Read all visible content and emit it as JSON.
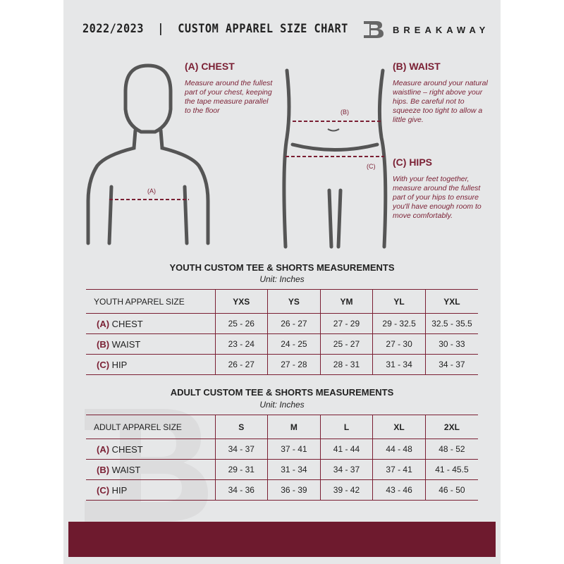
{
  "header": {
    "title": "2022/2023  |  CUSTOM APPAREL SIZE CHART",
    "brand": "BREAKAWAY"
  },
  "chest": {
    "heading": "(A) CHEST",
    "text": "Measure around the fullest part of your chest, keeping the tape measure parallel to the floor",
    "marker": "(A)"
  },
  "waist": {
    "heading": "(B) WAIST",
    "text": "Measure around your natural waistline – right above your hips. Be careful not to squeeze too tight to allow a little give.",
    "marker": "(B)"
  },
  "hips": {
    "heading": "(C) HIPS",
    "text": "With your feet together, measure around the fullest part of your hips to ensure you'll have enough room to move comfortably.",
    "marker": "(C)"
  },
  "youth": {
    "title": "YOUTH CUSTOM TEE & SHORTS MEASUREMENTS",
    "unit": "Unit: Inches",
    "header": [
      "YOUTH APPAREL SIZE",
      "YXS",
      "YS",
      "YM",
      "YL",
      "YXL"
    ],
    "rows": [
      {
        "letter": "(A)",
        "label": "CHEST",
        "values": [
          "25 - 26",
          "26 - 27",
          "27 - 29",
          "29 - 32.5",
          "32.5 - 35.5"
        ]
      },
      {
        "letter": "(B)",
        "label": "WAIST",
        "values": [
          "23 - 24",
          "24 - 25",
          "25 - 27",
          "27 - 30",
          "30 - 33"
        ]
      },
      {
        "letter": "(C)",
        "label": "HIP",
        "values": [
          "26 - 27",
          "27 - 28",
          "28 - 31",
          "31 - 34",
          "34 - 37"
        ]
      }
    ]
  },
  "adult": {
    "title": "ADULT CUSTOM TEE & SHORTS MEASUREMENTS",
    "unit": "Unit: Inches",
    "header": [
      "ADULT APPAREL SIZE",
      "S",
      "M",
      "L",
      "XL",
      "2XL"
    ],
    "rows": [
      {
        "letter": "(A)",
        "label": "CHEST",
        "values": [
          "34 - 37",
          "37 - 41",
          "41 - 44",
          "44 - 48",
          "48 - 52"
        ]
      },
      {
        "letter": "(B)",
        "label": "WAIST",
        "values": [
          "29 - 31",
          "31 - 34",
          "34 - 37",
          "37 - 41",
          "41 - 45.5"
        ]
      },
      {
        "letter": "(C)",
        "label": "HIP",
        "values": [
          "34 - 36",
          "36 - 39",
          "39 - 42",
          "43 - 46",
          "46 - 50"
        ]
      }
    ]
  },
  "colors": {
    "accent": "#7a1f33",
    "footer": "#6e1a2e",
    "panel": "#e6e7e8"
  }
}
